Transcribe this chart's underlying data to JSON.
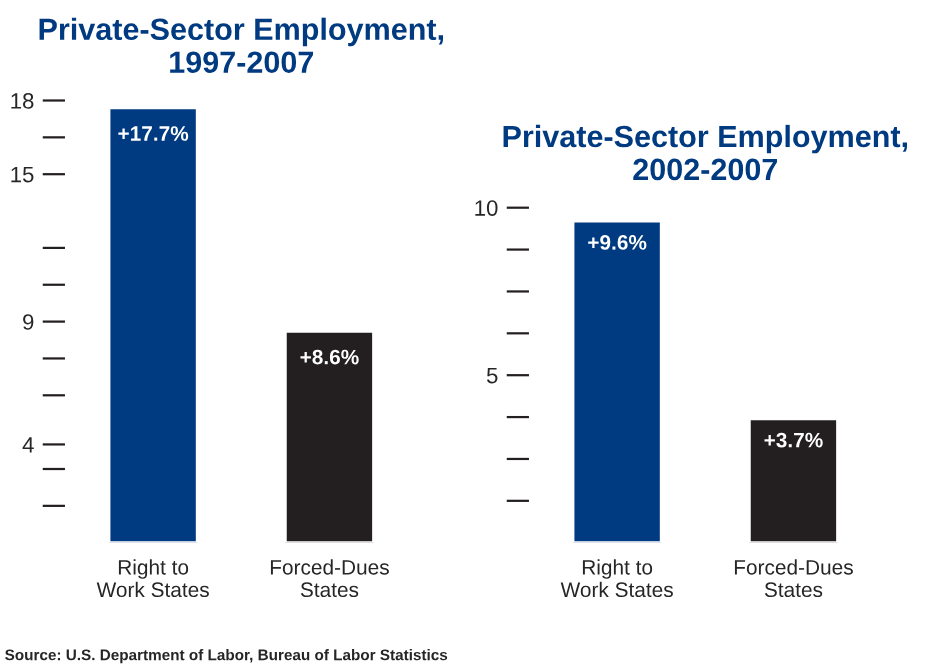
{
  "chart_data": [
    {
      "type": "bar",
      "title": "Private-Sector Employment,\n1997-2007",
      "categories": [
        "Right to\nWork States",
        "Forced-Dues\nStates"
      ],
      "values": [
        17.7,
        8.6
      ],
      "colors": [
        "#003a80",
        "#231f20"
      ],
      "value_labels": [
        "+17.7%",
        "+8.6%"
      ],
      "ylim": [
        0,
        18
      ],
      "yticks": [
        18,
        {
          "value": 16.5,
          "label": null
        },
        15,
        {
          "value": 12,
          "label": null
        },
        {
          "value": 10.5,
          "label": null
        },
        9,
        {
          "value": 7.5,
          "label": null
        },
        {
          "value": 6,
          "label": null
        },
        4,
        {
          "value": 3,
          "label": null
        },
        {
          "value": 1.5,
          "label": null
        }
      ],
      "annotations": [
        "Source: U.S. Department of Labor, Bureau of Labor Statistics"
      ]
    },
    {
      "type": "bar",
      "title": "Private-Sector Employment,\n2002-2007",
      "categories": [
        "Right to\nWork States",
        "Forced-Dues\nStates"
      ],
      "values": [
        9.6,
        3.7
      ],
      "colors": [
        "#003a80",
        "#231f20"
      ],
      "value_labels": [
        "+9.6%",
        "+3.7%"
      ],
      "ylim": [
        0,
        10
      ],
      "yticks": [
        {
          "value": 10,
          "label": "10"
        },
        {
          "value": 8.75,
          "label": null
        },
        {
          "value": 7.5,
          "label": null
        },
        {
          "value": 6.25,
          "label": null
        },
        {
          "value": 5,
          "label": "5"
        },
        {
          "value": 3.75,
          "label": null
        },
        {
          "value": 2.5,
          "label": null
        },
        {
          "value": 1.25,
          "label": null
        }
      ]
    }
  ]
}
